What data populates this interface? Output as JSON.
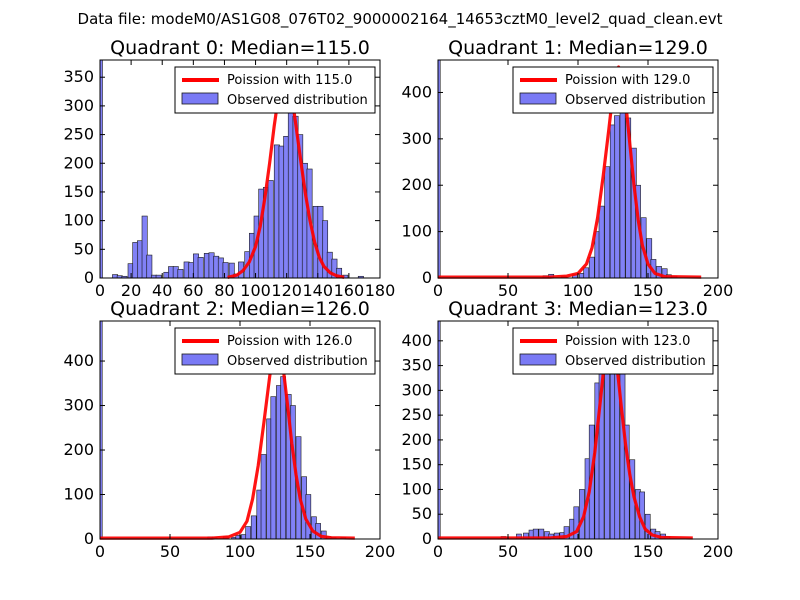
{
  "suptitle": "Data file: modeM0/AS1G08_076T02_9000002164_14653cztM0_level2_quad_clean.evt",
  "chart_data": [
    {
      "type": "bar",
      "title": "Quadrant 0: Median=115.0",
      "median": 115.0,
      "xlim": [
        0,
        180
      ],
      "ylim": [
        0,
        380
      ],
      "xticks": [
        0,
        20,
        40,
        60,
        80,
        100,
        120,
        140,
        160,
        180
      ],
      "yticks": [
        0,
        50,
        100,
        150,
        200,
        250,
        300,
        350
      ],
      "bin_width": 3.4,
      "bins": [
        [
          0,
          2,
          380
        ],
        [
          8,
          3,
          6
        ],
        [
          11,
          3,
          4
        ],
        [
          14,
          3,
          3
        ],
        [
          18,
          3,
          25
        ],
        [
          21,
          3,
          62
        ],
        [
          24,
          3,
          65
        ],
        [
          27,
          3,
          108
        ],
        [
          30,
          3,
          40
        ],
        [
          33,
          3,
          5
        ],
        [
          36,
          3,
          5
        ],
        [
          41,
          3,
          10
        ],
        [
          44,
          3,
          20
        ],
        [
          47,
          3,
          20
        ],
        [
          50,
          3,
          15
        ],
        [
          54,
          3,
          28
        ],
        [
          57,
          3,
          27
        ],
        [
          60,
          3,
          42
        ],
        [
          63,
          3,
          36
        ],
        [
          67,
          3,
          43
        ],
        [
          70,
          3,
          44
        ],
        [
          73,
          3,
          38
        ],
        [
          76,
          3,
          35
        ],
        [
          79,
          3,
          27
        ],
        [
          83,
          3,
          26
        ],
        [
          86,
          3,
          7
        ],
        [
          89,
          3,
          28
        ],
        [
          93,
          3,
          46
        ],
        [
          96,
          3,
          78
        ],
        [
          99,
          3,
          108
        ],
        [
          102,
          3,
          155
        ],
        [
          105,
          3,
          158
        ],
        [
          108,
          3,
          170
        ],
        [
          112,
          3,
          232
        ],
        [
          115,
          3,
          230
        ],
        [
          118,
          3,
          247
        ],
        [
          121,
          3,
          290
        ],
        [
          124,
          3,
          282
        ],
        [
          127,
          3,
          250
        ],
        [
          130,
          3,
          200
        ],
        [
          133,
          3,
          190
        ],
        [
          137,
          3,
          125
        ],
        [
          140,
          3,
          125
        ],
        [
          143,
          3,
          100
        ],
        [
          146,
          3,
          45
        ],
        [
          149,
          3,
          33
        ],
        [
          152,
          3,
          17
        ],
        [
          156,
          3,
          5
        ],
        [
          166,
          3,
          3
        ]
      ],
      "poisson_curve": [
        [
          82,
          1
        ],
        [
          88,
          5
        ],
        [
          92,
          13
        ],
        [
          96,
          28
        ],
        [
          100,
          55
        ],
        [
          103,
          90
        ],
        [
          106,
          140
        ],
        [
          109,
          200
        ],
        [
          112,
          265
        ],
        [
          115,
          322
        ],
        [
          118,
          355
        ],
        [
          119,
          362
        ],
        [
          121,
          352
        ],
        [
          123,
          325
        ],
        [
          126,
          265
        ],
        [
          129,
          205
        ],
        [
          132,
          148
        ],
        [
          135,
          100
        ],
        [
          138,
          62
        ],
        [
          141,
          36
        ],
        [
          144,
          20
        ],
        [
          148,
          9
        ],
        [
          152,
          4
        ],
        [
          157,
          1
        ]
      ],
      "legend": [
        "Poission with 115.0",
        "Observed distribution"
      ]
    },
    {
      "type": "bar",
      "title": "Quadrant 1: Median=129.0",
      "median": 129.0,
      "xlim": [
        0,
        200
      ],
      "ylim": [
        0,
        470
      ],
      "xticks": [
        0,
        50,
        100,
        150,
        200
      ],
      "yticks": [
        0,
        100,
        200,
        300,
        400
      ],
      "bin_width": 3.7,
      "bins": [
        [
          0,
          2,
          470
        ],
        [
          75,
          3,
          5
        ],
        [
          79,
          3,
          8
        ],
        [
          88,
          3,
          3
        ],
        [
          96,
          3,
          7
        ],
        [
          101,
          3,
          10
        ],
        [
          104,
          3,
          22
        ],
        [
          108,
          3,
          45
        ],
        [
          112,
          3,
          100
        ],
        [
          115,
          3,
          155
        ],
        [
          119,
          3,
          240
        ],
        [
          123,
          3,
          330
        ],
        [
          126,
          3,
          350
        ],
        [
          130,
          3,
          365
        ],
        [
          134,
          3,
          345
        ],
        [
          138,
          3,
          280
        ],
        [
          141,
          3,
          200
        ],
        [
          145,
          3,
          130
        ],
        [
          149,
          3,
          85
        ],
        [
          152,
          3,
          40
        ],
        [
          156,
          3,
          25
        ],
        [
          160,
          3,
          20
        ],
        [
          163,
          3,
          7
        ],
        [
          167,
          3,
          4
        ]
      ],
      "poisson_curve": [
        [
          0,
          2
        ],
        [
          80,
          2
        ],
        [
          92,
          4
        ],
        [
          100,
          10
        ],
        [
          106,
          30
        ],
        [
          110,
          65
        ],
        [
          114,
          130
        ],
        [
          118,
          220
        ],
        [
          122,
          320
        ],
        [
          125,
          400
        ],
        [
          127,
          440
        ],
        [
          129,
          455
        ],
        [
          131,
          440
        ],
        [
          134,
          380
        ],
        [
          137,
          290
        ],
        [
          140,
          200
        ],
        [
          143,
          125
        ],
        [
          146,
          70
        ],
        [
          150,
          30
        ],
        [
          155,
          10
        ],
        [
          162,
          3
        ],
        [
          188,
          2
        ]
      ],
      "legend": [
        "Poission with 129.0",
        "Observed distribution"
      ]
    },
    {
      "type": "bar",
      "title": "Quadrant 2: Median=126.0",
      "median": 126.0,
      "xlim": [
        0,
        200
      ],
      "ylim": [
        0,
        490
      ],
      "xticks": [
        0,
        50,
        100,
        150,
        200
      ],
      "yticks": [
        0,
        100,
        200,
        300,
        400
      ],
      "bin_width": 3.6,
      "bins": [
        [
          0,
          2,
          490
        ],
        [
          77,
          3,
          5
        ],
        [
          80,
          3,
          3
        ],
        [
          88,
          3,
          5
        ],
        [
          94,
          3,
          4
        ],
        [
          97,
          3,
          8
        ],
        [
          101,
          3,
          10
        ],
        [
          104,
          3,
          28
        ],
        [
          108,
          3,
          52
        ],
        [
          112,
          3,
          110
        ],
        [
          115,
          3,
          190
        ],
        [
          119,
          3,
          270
        ],
        [
          122,
          3,
          320
        ],
        [
          126,
          3,
          345
        ],
        [
          129,
          3,
          365
        ],
        [
          133,
          3,
          325
        ],
        [
          136,
          3,
          300
        ],
        [
          140,
          3,
          230
        ],
        [
          144,
          3,
          140
        ],
        [
          147,
          3,
          100
        ],
        [
          151,
          3,
          50
        ],
        [
          154,
          3,
          35
        ],
        [
          158,
          3,
          18
        ],
        [
          162,
          3,
          5
        ],
        [
          165,
          3,
          3
        ],
        [
          172,
          3,
          3
        ]
      ],
      "poisson_curve": [
        [
          0,
          2
        ],
        [
          80,
          2
        ],
        [
          92,
          5
        ],
        [
          100,
          15
        ],
        [
          105,
          40
        ],
        [
          109,
          90
        ],
        [
          113,
          165
        ],
        [
          117,
          260
        ],
        [
          121,
          360
        ],
        [
          124,
          430
        ],
        [
          126,
          455
        ],
        [
          128,
          440
        ],
        [
          131,
          380
        ],
        [
          134,
          300
        ],
        [
          137,
          215
        ],
        [
          140,
          145
        ],
        [
          143,
          90
        ],
        [
          147,
          45
        ],
        [
          152,
          18
        ],
        [
          158,
          6
        ],
        [
          165,
          3
        ],
        [
          182,
          2
        ]
      ],
      "legend": [
        "Poission with 126.0",
        "Observed distribution"
      ]
    },
    {
      "type": "bar",
      "title": "Quadrant 3: Median=123.0",
      "median": 123.0,
      "xlim": [
        0,
        200
      ],
      "ylim": [
        0,
        440
      ],
      "xticks": [
        0,
        50,
        100,
        150,
        200
      ],
      "yticks": [
        0,
        50,
        100,
        150,
        200,
        250,
        300,
        350,
        400
      ],
      "bin_width": 3.6,
      "bins": [
        [
          0,
          2,
          440
        ],
        [
          45,
          3,
          5
        ],
        [
          56,
          3,
          10
        ],
        [
          61,
          3,
          12
        ],
        [
          65,
          3,
          18
        ],
        [
          68,
          3,
          20
        ],
        [
          72,
          3,
          20
        ],
        [
          76,
          3,
          15
        ],
        [
          79,
          3,
          10
        ],
        [
          83,
          3,
          12
        ],
        [
          87,
          3,
          13
        ],
        [
          90,
          3,
          25
        ],
        [
          94,
          3,
          40
        ],
        [
          97,
          3,
          65
        ],
        [
          101,
          3,
          100
        ],
        [
          105,
          3,
          162
        ],
        [
          108,
          3,
          230
        ],
        [
          112,
          3,
          315
        ],
        [
          115,
          3,
          345
        ],
        [
          119,
          3,
          385
        ],
        [
          123,
          3,
          420
        ],
        [
          126,
          3,
          360
        ],
        [
          130,
          3,
          340
        ],
        [
          133,
          3,
          230
        ],
        [
          137,
          3,
          160
        ],
        [
          141,
          3,
          100
        ],
        [
          144,
          3,
          95
        ],
        [
          148,
          3,
          50
        ],
        [
          152,
          3,
          20
        ],
        [
          155,
          3,
          15
        ],
        [
          159,
          3,
          10
        ],
        [
          162,
          3,
          5
        ]
      ],
      "poisson_curve": [
        [
          0,
          2
        ],
        [
          80,
          2
        ],
        [
          92,
          5
        ],
        [
          99,
          15
        ],
        [
          104,
          45
        ],
        [
          108,
          95
        ],
        [
          112,
          175
        ],
        [
          116,
          280
        ],
        [
          119,
          360
        ],
        [
          121,
          400
        ],
        [
          123,
          412
        ],
        [
          125,
          400
        ],
        [
          128,
          345
        ],
        [
          131,
          265
        ],
        [
          134,
          190
        ],
        [
          137,
          130
        ],
        [
          140,
          85
        ],
        [
          144,
          45
        ],
        [
          148,
          20
        ],
        [
          153,
          8
        ],
        [
          160,
          3
        ],
        [
          182,
          2
        ]
      ],
      "legend": [
        "Poission with 123.0",
        "Observed distribution"
      ]
    }
  ]
}
